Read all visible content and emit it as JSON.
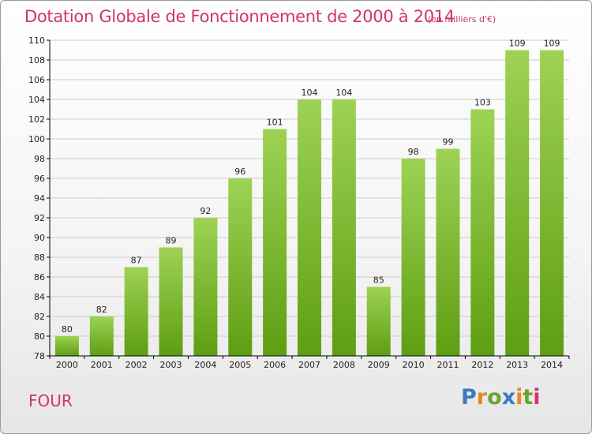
{
  "header": {
    "title": "Dotation Globale de Fonctionnement de 2000 à 2014",
    "subtitle": "(en milliers d'€)"
  },
  "footer": {
    "town": "FOUR",
    "logo_text": "Proxiti"
  },
  "colors": {
    "title": "#d0336e",
    "bar_top": "#9ed255",
    "bar_bottom": "#5e9e12",
    "axis": "#000000",
    "grid": "#cccccc",
    "logo_letters": [
      "#3a7cc4",
      "#e0892b",
      "#6aa531",
      "#3a7cc4",
      "#e0892b",
      "#6aa531",
      "#d0336e"
    ]
  },
  "chart_data": {
    "type": "bar",
    "title": "Dotation Globale de Fonctionnement de 2000 à 2014",
    "subtitle": "(en milliers d'€)",
    "categories": [
      "2000",
      "2001",
      "2002",
      "2003",
      "2004",
      "2005",
      "2006",
      "2007",
      "2008",
      "2009",
      "2010",
      "2011",
      "2012",
      "2013",
      "2014"
    ],
    "values": [
      80,
      82,
      87,
      89,
      92,
      96,
      101,
      104,
      104,
      85,
      98,
      99,
      103,
      109,
      109
    ],
    "ylim": [
      78,
      110
    ],
    "yticks": [
      78,
      80,
      82,
      84,
      86,
      88,
      90,
      92,
      94,
      96,
      98,
      100,
      102,
      104,
      106,
      108,
      110
    ],
    "grid": true,
    "data_labels": true
  }
}
